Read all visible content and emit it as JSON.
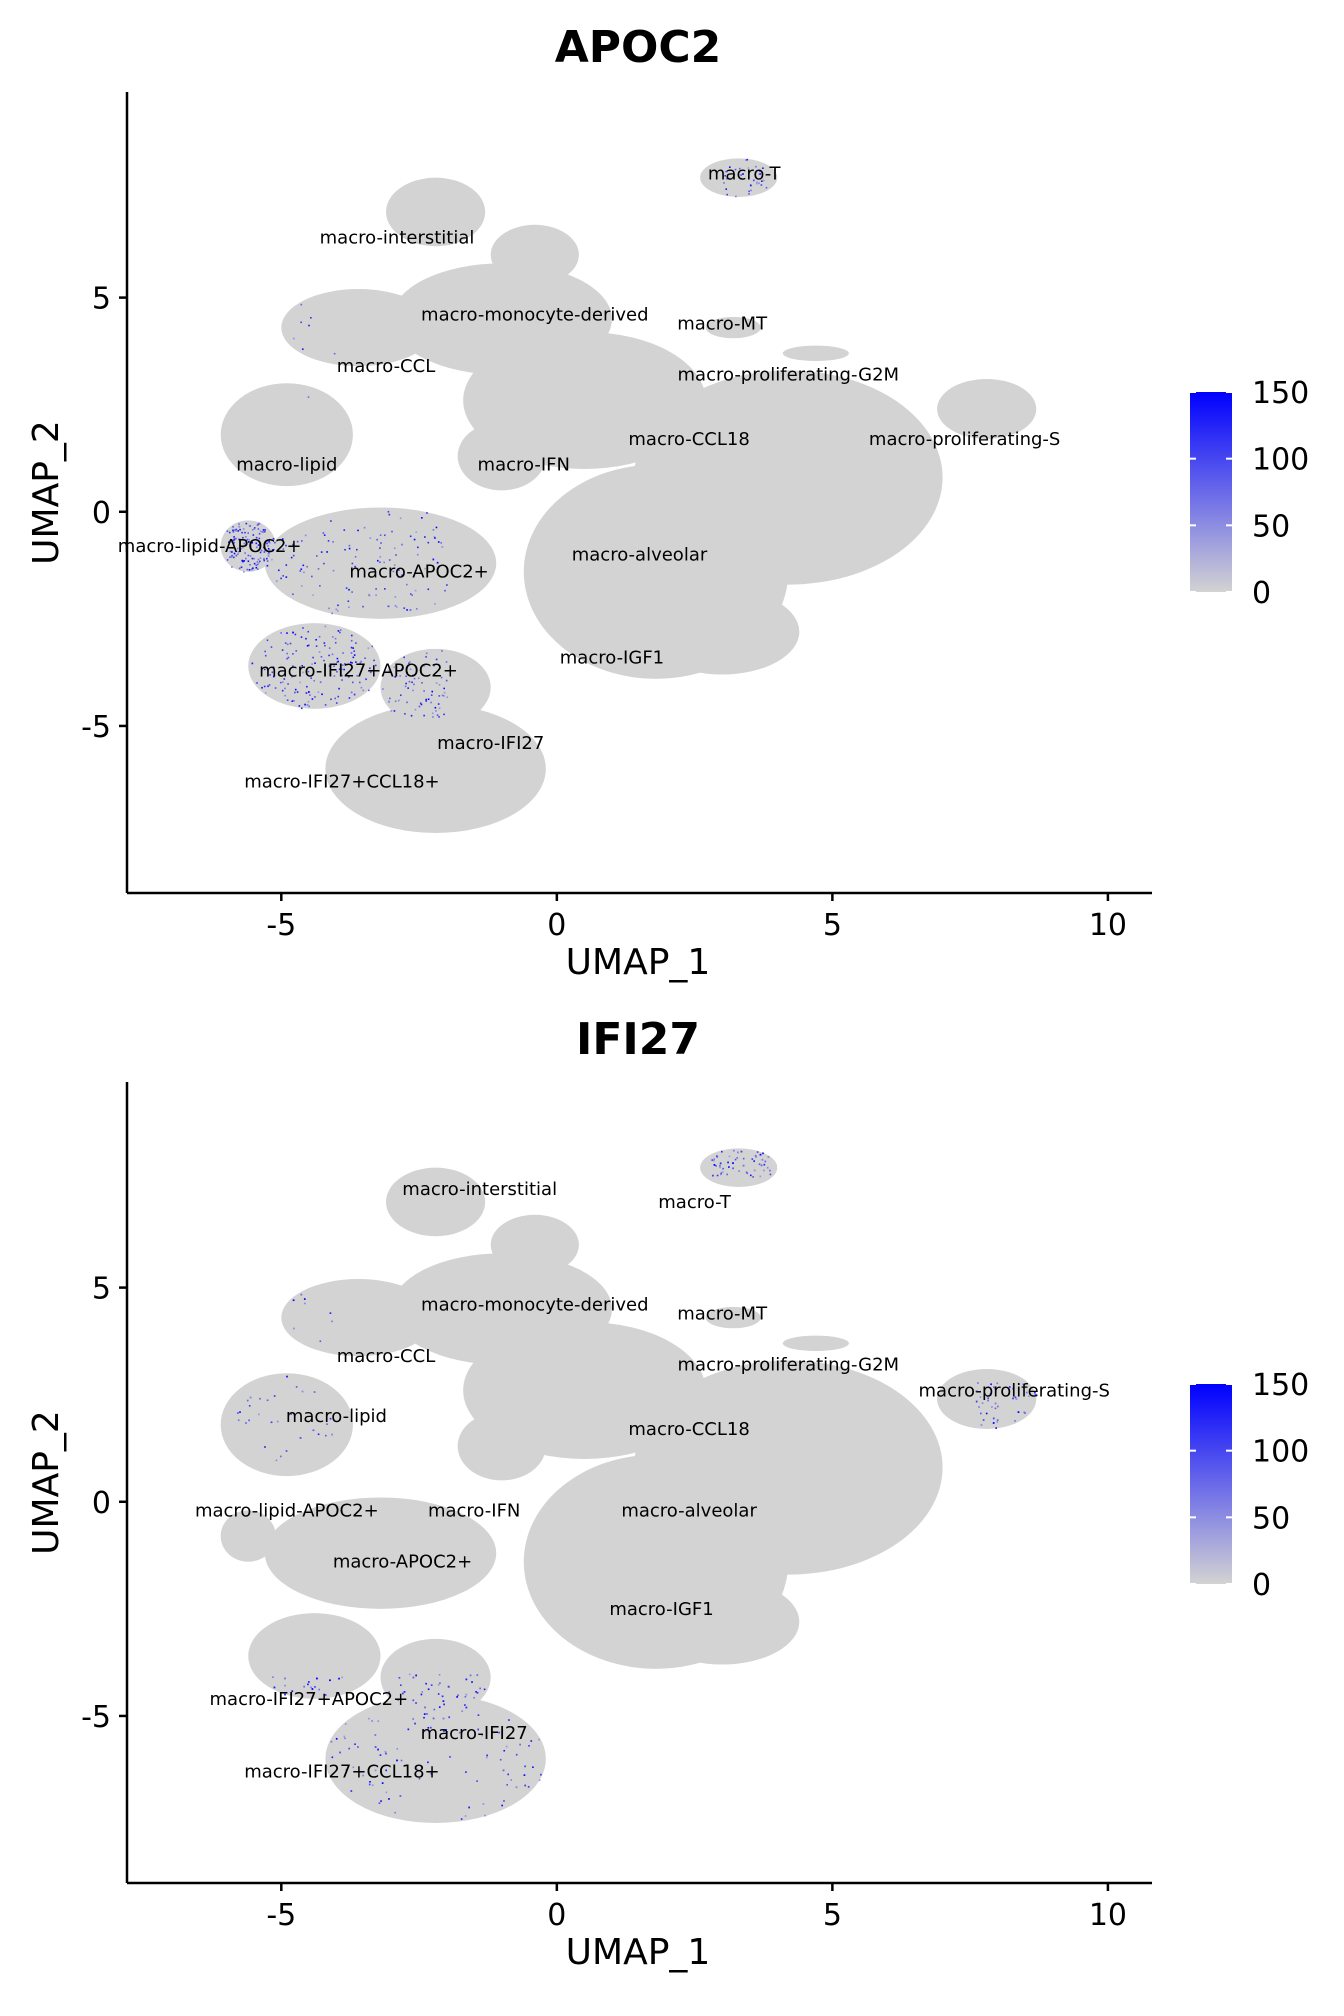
{
  "colors": {
    "low": "#d3d3d3",
    "high": "#0000ff",
    "axis": "#000000",
    "background": "#ffffff"
  },
  "chart_data": [
    {
      "type": "scatter",
      "title": "APOC2",
      "xlabel": "UMAP_1",
      "ylabel": "UMAP_2",
      "xlim": [
        -7.8,
        10.8
      ],
      "ylim": [
        -8.9,
        9.8
      ],
      "xticks": [
        -5,
        0,
        5,
        10
      ],
      "yticks": [
        -5,
        0,
        5
      ],
      "grid": false,
      "legend": {
        "placement": "right",
        "ticks": [
          0,
          50,
          100,
          150
        ],
        "min": 0,
        "max": 150
      },
      "clusters": [
        {
          "name": "macro-T",
          "x": 3.4,
          "y": 7.9
        },
        {
          "name": "macro-interstitial",
          "x": -2.9,
          "y": 6.4
        },
        {
          "name": "macro-monocyte-derived",
          "x": -0.4,
          "y": 4.6
        },
        {
          "name": "macro-MT",
          "x": 3.0,
          "y": 4.4
        },
        {
          "name": "macro-CCL",
          "x": -3.1,
          "y": 3.4
        },
        {
          "name": "macro-proliferating-G2M",
          "x": 4.2,
          "y": 3.2
        },
        {
          "name": "macro-proliferating-S",
          "x": 7.4,
          "y": 1.7
        },
        {
          "name": "macro-CCL18",
          "x": 2.4,
          "y": 1.7
        },
        {
          "name": "macro-lipid",
          "x": -4.9,
          "y": 1.1
        },
        {
          "name": "macro-IFN",
          "x": -0.6,
          "y": 1.1
        },
        {
          "name": "macro-lipid-APOC2+",
          "x": -6.3,
          "y": -0.8
        },
        {
          "name": "macro-alveolar",
          "x": 1.5,
          "y": -1.0
        },
        {
          "name": "macro-APOC2+",
          "x": -2.5,
          "y": -1.4
        },
        {
          "name": "macro-IFI27+APOC2+",
          "x": -3.6,
          "y": -3.7
        },
        {
          "name": "macro-IGF1",
          "x": 1.0,
          "y": -3.4
        },
        {
          "name": "macro-IFI27",
          "x": -1.2,
          "y": -5.4
        },
        {
          "name": "macro-IFI27+CCL18+",
          "x": -3.9,
          "y": -6.3
        }
      ]
    },
    {
      "type": "scatter",
      "title": "IFI27",
      "xlabel": "UMAP_1",
      "ylabel": "UMAP_2",
      "xlim": [
        -7.8,
        10.8
      ],
      "ylim": [
        -8.9,
        9.8
      ],
      "xticks": [
        -5,
        0,
        5,
        10
      ],
      "yticks": [
        -5,
        0,
        5
      ],
      "grid": false,
      "legend": {
        "placement": "right",
        "ticks": [
          0,
          50,
          100,
          150
        ],
        "min": 0,
        "max": 150
      },
      "clusters": [
        {
          "name": "macro-interstitial",
          "x": -1.4,
          "y": 7.3
        },
        {
          "name": "macro-T",
          "x": 2.5,
          "y": 7.0
        },
        {
          "name": "macro-monocyte-derived",
          "x": -0.4,
          "y": 4.6
        },
        {
          "name": "macro-MT",
          "x": 3.0,
          "y": 4.4
        },
        {
          "name": "macro-CCL",
          "x": -3.1,
          "y": 3.4
        },
        {
          "name": "macro-proliferating-G2M",
          "x": 4.2,
          "y": 3.2
        },
        {
          "name": "macro-proliferating-S",
          "x": 8.3,
          "y": 2.6
        },
        {
          "name": "macro-lipid",
          "x": -4.0,
          "y": 2.0
        },
        {
          "name": "macro-CCL18",
          "x": 2.4,
          "y": 1.7
        },
        {
          "name": "macro-lipid-APOC2+",
          "x": -4.9,
          "y": -0.2
        },
        {
          "name": "macro-IFN",
          "x": -1.5,
          "y": -0.2
        },
        {
          "name": "macro-alveolar",
          "x": 2.4,
          "y": -0.2
        },
        {
          "name": "macro-APOC2+",
          "x": -2.8,
          "y": -1.4
        },
        {
          "name": "macro-IGF1",
          "x": 1.9,
          "y": -2.5
        },
        {
          "name": "macro-IFI27+APOC2+",
          "x": -4.5,
          "y": -4.6
        },
        {
          "name": "macro-IFI27",
          "x": -1.5,
          "y": -5.4
        },
        {
          "name": "macro-IFI27+CCL18+",
          "x": -3.9,
          "y": -6.3
        }
      ]
    }
  ]
}
